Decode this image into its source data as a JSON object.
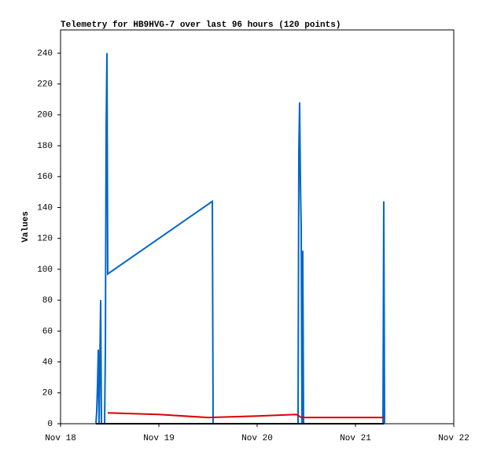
{
  "chart_data": {
    "type": "line",
    "title": "Telemetry for HB9HVG-7 over last 96 hours (120 points)",
    "y_label": "Values",
    "xlim": [
      18,
      22
    ],
    "xticks": [
      {
        "value": 18,
        "label": "Nov 18"
      },
      {
        "value": 19,
        "label": "Nov 19"
      },
      {
        "value": 20,
        "label": "Nov 20"
      },
      {
        "value": 21,
        "label": "Nov 21"
      },
      {
        "value": 22,
        "label": "Nov 22"
      }
    ],
    "ylim": [
      0,
      255
    ],
    "yticks": [
      0,
      20,
      40,
      60,
      80,
      100,
      120,
      140,
      160,
      180,
      200,
      220,
      240
    ],
    "grid": false,
    "series": [
      {
        "color": "#0066cc",
        "x": [
          18.36,
          18.368,
          18.376,
          18.384,
          18.392,
          18.4,
          18.408,
          18.416,
          18.448,
          18.456,
          18.464,
          18.472,
          18.48,
          19.544,
          19.552,
          20.416,
          20.424,
          20.432,
          20.44,
          20.448,
          20.456,
          20.464,
          20.472,
          21.28,
          21.288,
          21.296
        ],
        "values": [
          0,
          8,
          25,
          48,
          0,
          40,
          80,
          0,
          0,
          48,
          192,
          240,
          97,
          144,
          0,
          0,
          176,
          208,
          156,
          128,
          0,
          112,
          0,
          0,
          144,
          0
        ]
      },
      {
        "color": "#dd0000",
        "x": [
          18.48,
          19.0,
          19.5,
          20.0,
          20.4,
          20.45,
          21.29
        ],
        "values": [
          7,
          6,
          4,
          5,
          6,
          4,
          4
        ]
      },
      {
        "color": "#000000",
        "x": [
          18.36,
          21.29
        ],
        "values": [
          0,
          0
        ]
      }
    ]
  }
}
